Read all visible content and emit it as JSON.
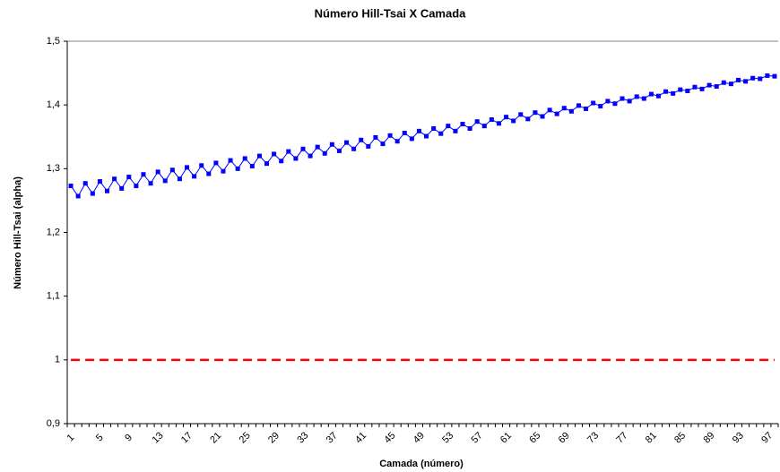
{
  "chart_data": {
    "type": "line",
    "title": "Número Hill-Tsai X Camada",
    "x_label": "Camada (número)",
    "y_label": "Número Hill-Tsai (alpha)",
    "categories": [
      1,
      null,
      null,
      null,
      5,
      null,
      null,
      null,
      9,
      null,
      null,
      null,
      13,
      null,
      null,
      null,
      17,
      null,
      null,
      null,
      21,
      null,
      null,
      null,
      25,
      null,
      null,
      null,
      29,
      null,
      null,
      null,
      33,
      null,
      null,
      null,
      37,
      null,
      null,
      null,
      41,
      null,
      null,
      null,
      45,
      null,
      null,
      null,
      49,
      null,
      null,
      null,
      53,
      null,
      null,
      null,
      57,
      null,
      null,
      null,
      61,
      null,
      null,
      null,
      65,
      null,
      null,
      null,
      69,
      null,
      null,
      null,
      73,
      null,
      null,
      null,
      77,
      null,
      null,
      null,
      81,
      null,
      null,
      null,
      85,
      null,
      null,
      null,
      89,
      null,
      null,
      null,
      93,
      null,
      null,
      null,
      97,
      null
    ],
    "series": [
      {
        "color": "#0000ff",
        "marker": "square",
        "dashed": false,
        "values": [
          1.273,
          1.257,
          1.277,
          1.261,
          1.28,
          1.265,
          1.284,
          1.269,
          1.287,
          1.273,
          1.291,
          1.277,
          1.295,
          1.281,
          1.298,
          1.284,
          1.302,
          1.288,
          1.305,
          1.292,
          1.309,
          1.296,
          1.313,
          1.3,
          1.316,
          1.304,
          1.32,
          1.308,
          1.323,
          1.312,
          1.327,
          1.316,
          1.331,
          1.32,
          1.334,
          1.324,
          1.338,
          1.328,
          1.341,
          1.331,
          1.345,
          1.335,
          1.349,
          1.339,
          1.352,
          1.343,
          1.356,
          1.347,
          1.359,
          1.351,
          1.363,
          1.355,
          1.367,
          1.359,
          1.37,
          1.363,
          1.374,
          1.367,
          1.377,
          1.371,
          1.381,
          1.375,
          1.385,
          1.378,
          1.388,
          1.382,
          1.392,
          1.386,
          1.395,
          1.39,
          1.399,
          1.394,
          1.403,
          1.398,
          1.406,
          1.402,
          1.41,
          1.406,
          1.413,
          1.41,
          1.417,
          1.414,
          1.421,
          1.418,
          1.424,
          1.422,
          1.428,
          1.425,
          1.431,
          1.429,
          1.435,
          1.433,
          1.439,
          1.437,
          1.442,
          1.441,
          1.446,
          1.445
        ]
      },
      {
        "color": "#ff0000",
        "marker": "none",
        "dashed": true,
        "values": [
          1,
          1,
          1,
          1,
          1,
          1,
          1,
          1,
          1,
          1,
          1,
          1,
          1,
          1,
          1,
          1,
          1,
          1,
          1,
          1,
          1,
          1,
          1,
          1,
          1,
          1,
          1,
          1,
          1,
          1,
          1,
          1,
          1,
          1,
          1,
          1,
          1,
          1,
          1,
          1,
          1,
          1,
          1,
          1,
          1,
          1,
          1,
          1,
          1,
          1,
          1,
          1,
          1,
          1,
          1,
          1,
          1,
          1,
          1,
          1,
          1,
          1,
          1,
          1,
          1,
          1,
          1,
          1,
          1,
          1,
          1,
          1,
          1,
          1,
          1,
          1,
          1,
          1,
          1,
          1,
          1,
          1,
          1,
          1,
          1,
          1,
          1,
          1,
          1,
          1,
          1,
          1,
          1,
          1,
          1,
          1,
          1,
          1
        ]
      }
    ],
    "ylim": [
      0.9,
      1.5
    ],
    "yticks": [
      {
        "value": 0.9,
        "label": "0,9"
      },
      1,
      {
        "value": 1.1,
        "label": "1,1"
      },
      {
        "value": 1.2,
        "label": "1,2"
      },
      {
        "value": 1.3,
        "label": "1,3"
      },
      {
        "value": 1.4,
        "label": "1,4"
      },
      {
        "value": 1.5,
        "label": "1,5"
      }
    ],
    "grid": false
  }
}
